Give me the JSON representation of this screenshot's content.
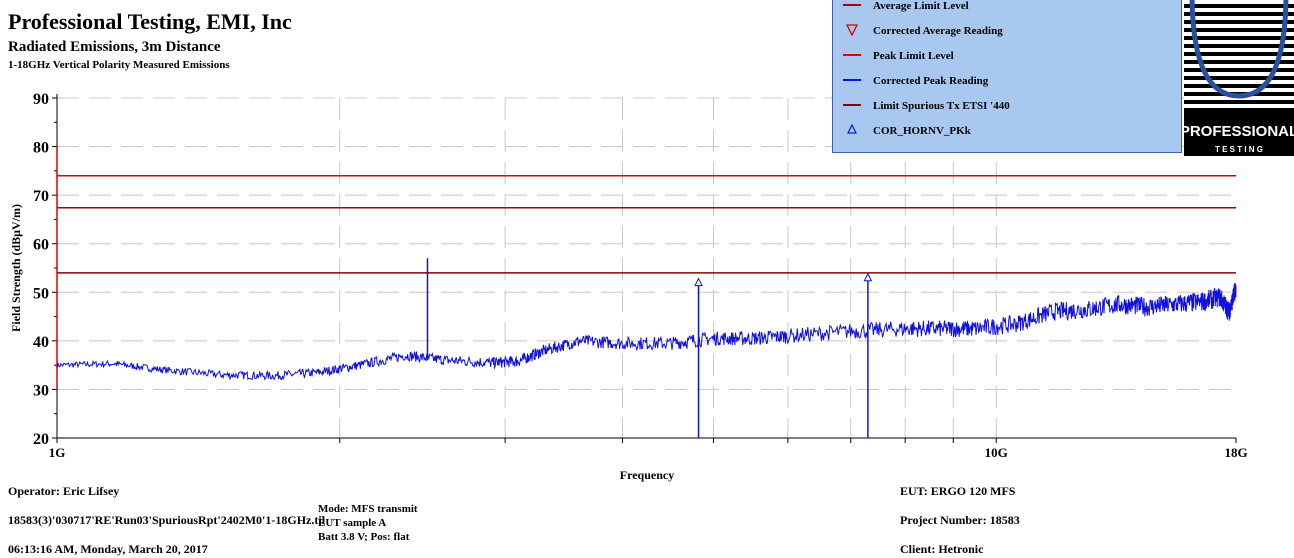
{
  "header": {
    "title": "Professional Testing, EMI, Inc",
    "subtitle": "Radiated Emissions, 3m Distance",
    "subtitle2": "1-18GHz Vertical Polarity Measured Emissions"
  },
  "legend": {
    "items": [
      {
        "label": "Average Limit Level",
        "symbol": "line",
        "color": "#a00000"
      },
      {
        "label": "Corrected Average Reading",
        "symbol": "triangle-down",
        "color": "#e00000"
      },
      {
        "label": "Peak Limit Level",
        "symbol": "line",
        "color": "#e00000"
      },
      {
        "label": "Corrected Peak Reading",
        "symbol": "line",
        "color": "#1010e0"
      },
      {
        "label": "Limit Spurious Tx ETSI '440",
        "symbol": "line",
        "color": "#8b0000"
      },
      {
        "label": "COR_HORNV_PKk",
        "symbol": "triangle-up",
        "color": "#1010e0"
      }
    ]
  },
  "logo": {
    "text1": "PROFESSIONAL",
    "text2": "T E S T I N G"
  },
  "footer": {
    "operator": "Operator: Eric Lifsey",
    "file": "18583(3)'030717'RE'Run03'SpuriousRpt'2402M0'1-18GHz.til",
    "timestamp": "06:13:16 AM, Monday, March 20, 2017",
    "mode": "Mode: MFS transmit",
    "eut_sample": "EUT sample A",
    "batt": "Batt 3.8 V; Pos: flat",
    "eut": "EUT: ERGO 120 MFS",
    "project": "Project Number: 18583",
    "client": "Client: Hetronic"
  },
  "chart_data": {
    "type": "line",
    "xscale": "log",
    "xlim": [
      1,
      18
    ],
    "ylim": [
      20,
      90
    ],
    "grid": true,
    "xlabel": "Frequency",
    "ylabel": "Field Strength (dBμV/m)",
    "x_ticks": [
      {
        "value": 1,
        "label": "1G"
      },
      {
        "value": 10,
        "label": "10G"
      },
      {
        "value": 18,
        "label": "18G"
      }
    ],
    "y_ticks": [
      20,
      30,
      40,
      50,
      60,
      70,
      80,
      90
    ],
    "limit_lines": [
      {
        "name": "Peak Limit Level",
        "y": 74,
        "color": "#e00000"
      },
      {
        "name": "Average Limit Level",
        "y": 67.4,
        "color": "#a00000"
      },
      {
        "name": "Limit Spurious Tx ETSI '440",
        "y": 54,
        "color": "#8b0000"
      }
    ],
    "series": [
      {
        "name": "Corrected Peak Reading",
        "color": "#1010e0",
        "x": [
          1.0,
          1.15,
          1.3,
          1.5,
          1.7,
          1.9,
          2.1,
          2.35,
          2.6,
          2.9,
          3.1,
          3.3,
          3.6,
          4.0,
          4.5,
          5.0,
          5.5,
          6.0,
          7.0,
          8.0,
          8.8,
          9.5,
          10.5,
          11.5,
          12.5,
          13.5,
          14.5,
          15.5,
          16.5,
          17.3,
          17.7,
          18.0
        ],
        "y": [
          35.0,
          35.3,
          34.0,
          33.0,
          32.8,
          33.5,
          35.0,
          37.0,
          36.0,
          35.5,
          35.8,
          38.0,
          40.0,
          39.5,
          39.5,
          40.5,
          40.5,
          41.0,
          42.0,
          42.5,
          42.5,
          42.5,
          43.5,
          46.0,
          46.5,
          47.5,
          47.0,
          47.5,
          48.0,
          49.0,
          46.0,
          51.0
        ]
      }
    ],
    "spikes": [
      {
        "x": 2.48,
        "y": 57.0,
        "base": 36
      },
      {
        "x": 4.82,
        "y": 52.0,
        "base": 20
      },
      {
        "x": 7.3,
        "y": 53.0,
        "base": 20
      }
    ],
    "markers": [
      {
        "series": "COR_HORNV_PKk",
        "x": 4.82,
        "y": 52.0
      },
      {
        "series": "COR_HORNV_PKk",
        "x": 7.3,
        "y": 53.0
      }
    ]
  }
}
